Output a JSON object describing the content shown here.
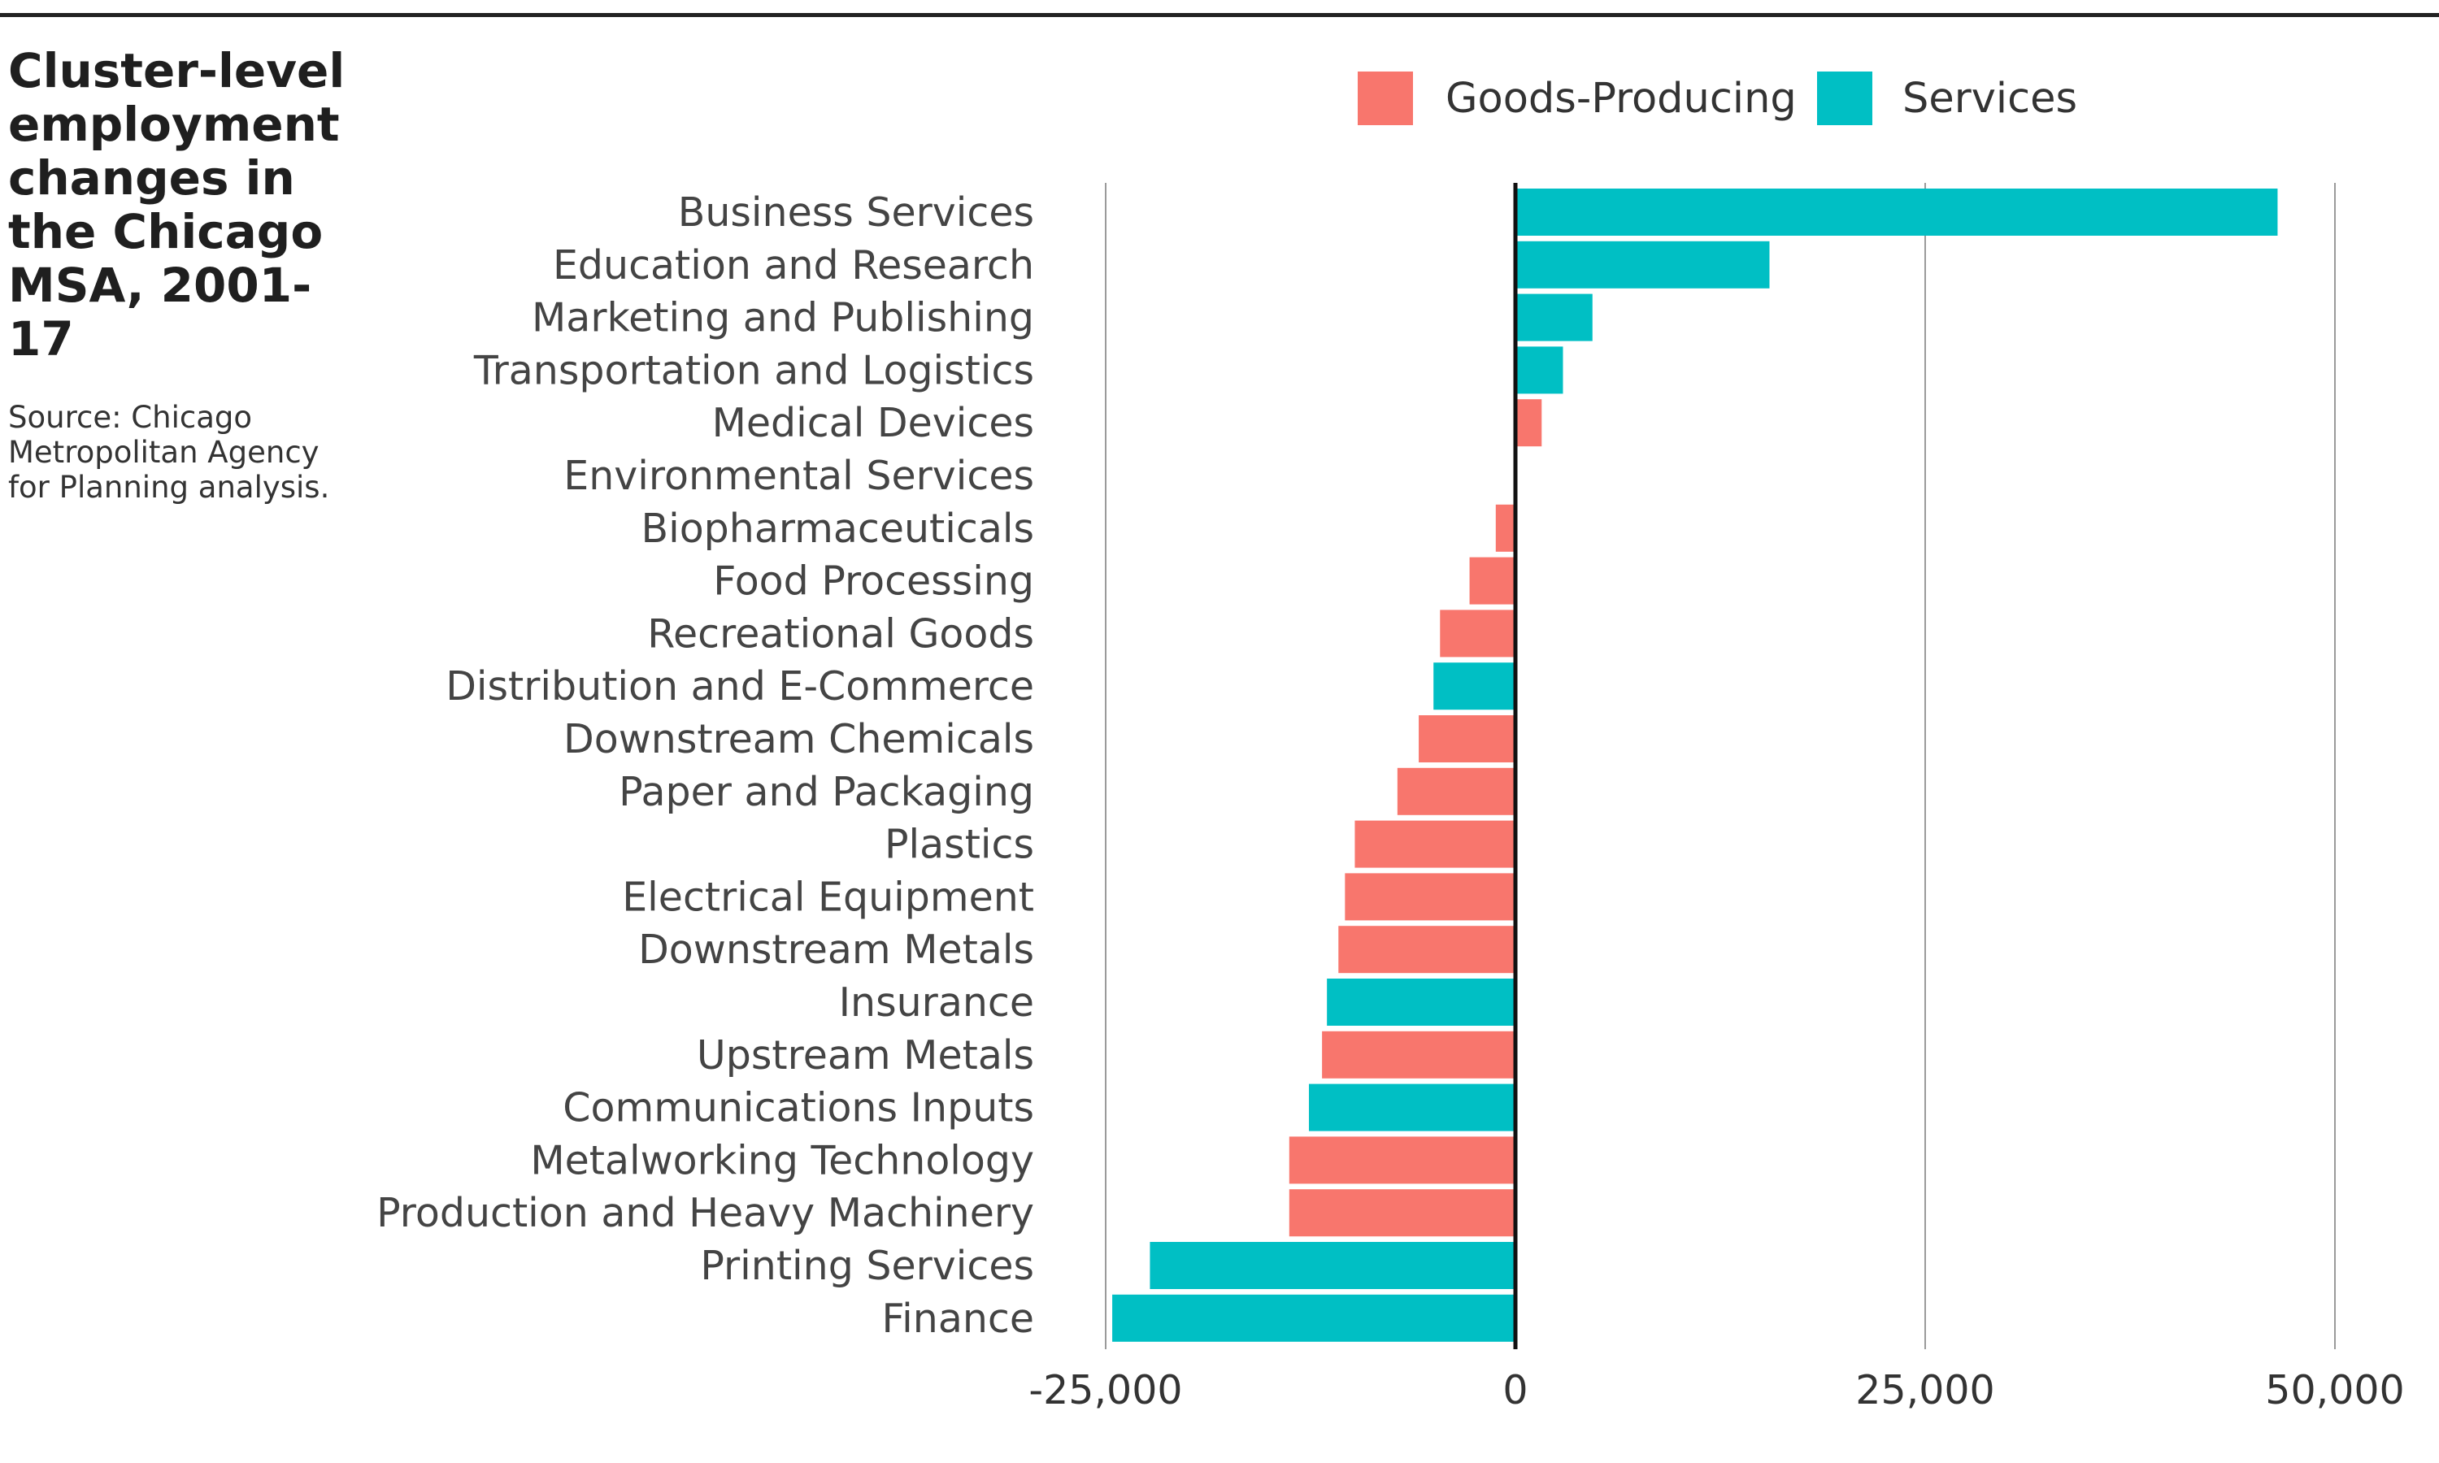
{
  "chart_data": {
    "type": "bar",
    "orientation": "horizontal",
    "title": "Cluster-level employment changes in the Chicago MSA, 2001-17",
    "source": "Source: Chicago Metropolitan Agency for Planning analysis.",
    "xlabel": "",
    "ylabel": "",
    "xlim": [
      -25000,
      50000
    ],
    "xticks": [
      -25000,
      0,
      25000,
      50000
    ],
    "xtick_labels": [
      "-25,000",
      "0",
      "25,000",
      "50,000"
    ],
    "grid": "vertical",
    "legend_position": "top",
    "legend": [
      {
        "name": "Goods-Producing",
        "color": "#F8766D"
      },
      {
        "name": "Services",
        "color": "#00BFC4"
      }
    ],
    "categories": [
      "Business Services",
      "Education and Research",
      "Marketing and Publishing",
      "Transportation and Logistics",
      "Medical Devices",
      "Environmental Services",
      "Biopharmaceuticals",
      "Food Processing",
      "Recreational Goods",
      "Distribution and E-Commerce",
      "Downstream Chemicals",
      "Paper and Packaging",
      "Plastics",
      "Electrical Equipment",
      "Downstream Metals",
      "Insurance",
      "Upstream Metals",
      "Communications Inputs",
      "Metalworking Technology",
      "Production and Heavy Machinery",
      "Printing Services",
      "Finance"
    ],
    "values": [
      46500,
      15500,
      4700,
      2900,
      1600,
      100,
      -1200,
      -2800,
      -4600,
      -5000,
      -5900,
      -7200,
      -9800,
      -10400,
      -10800,
      -11500,
      -11800,
      -12600,
      -13800,
      -13800,
      -22300,
      -24600
    ],
    "groups": [
      "Services",
      "Services",
      "Services",
      "Services",
      "Goods-Producing",
      "Services",
      "Goods-Producing",
      "Goods-Producing",
      "Goods-Producing",
      "Services",
      "Goods-Producing",
      "Goods-Producing",
      "Goods-Producing",
      "Goods-Producing",
      "Goods-Producing",
      "Services",
      "Goods-Producing",
      "Services",
      "Goods-Producing",
      "Goods-Producing",
      "Services",
      "Services"
    ]
  }
}
